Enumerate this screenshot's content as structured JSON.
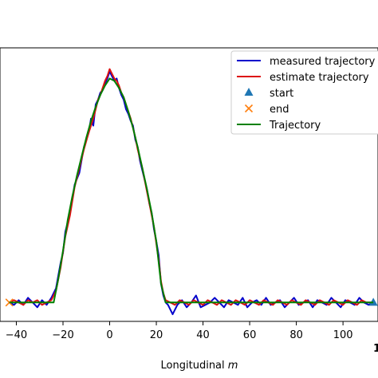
{
  "chart_data": {
    "type": "line",
    "xlabel_prefix": "Longitudinal ",
    "xlabel_unit": "m",
    "xlim": [
      -47,
      115
    ],
    "ylim": [
      -8,
      108
    ],
    "x_ticks": [
      -40,
      -20,
      0,
      20,
      40,
      60,
      80,
      100
    ],
    "x_tick_labels": [
      "−40",
      "−20",
      "0",
      "20",
      "40",
      "60",
      "80",
      "100"
    ],
    "x_tick_label_cut": "1",
    "legend_position": "upper right",
    "series": [
      {
        "name": "measured trajectory",
        "color": "#0000cc",
        "points": [
          [
            -43,
            0
          ],
          [
            -41,
            -1
          ],
          [
            -39,
            1
          ],
          [
            -37,
            -1
          ],
          [
            -35,
            2
          ],
          [
            -33,
            0
          ],
          [
            -31,
            -2
          ],
          [
            -29,
            1
          ],
          [
            -27,
            -1
          ],
          [
            -25,
            2
          ],
          [
            -23,
            6
          ],
          [
            -21,
            17
          ],
          [
            -20,
            21
          ],
          [
            -19,
            30
          ],
          [
            -17,
            38
          ],
          [
            -15,
            50
          ],
          [
            -13,
            55
          ],
          [
            -11,
            66
          ],
          [
            -9,
            72
          ],
          [
            -8,
            78
          ],
          [
            -7,
            75
          ],
          [
            -6,
            84
          ],
          [
            -5,
            86
          ],
          [
            -4,
            89
          ],
          [
            -3,
            90
          ],
          [
            -2,
            93
          ],
          [
            -1,
            95
          ],
          [
            0,
            98
          ],
          [
            1,
            96
          ],
          [
            2,
            94
          ],
          [
            3,
            95
          ],
          [
            4,
            91
          ],
          [
            5,
            88
          ],
          [
            6,
            86
          ],
          [
            7,
            82
          ],
          [
            8,
            80
          ],
          [
            9,
            77
          ],
          [
            10,
            75
          ],
          [
            11,
            69
          ],
          [
            12,
            66
          ],
          [
            13,
            60
          ],
          [
            14,
            56
          ],
          [
            15,
            52
          ],
          [
            16,
            48
          ],
          [
            17,
            42
          ],
          [
            18,
            38
          ],
          [
            19,
            31
          ],
          [
            20,
            26
          ],
          [
            21,
            20
          ],
          [
            22,
            8
          ],
          [
            23,
            3
          ],
          [
            24,
            0
          ],
          [
            25,
            -1
          ],
          [
            27,
            -5
          ],
          [
            29,
            -1
          ],
          [
            31,
            1
          ],
          [
            33,
            -2
          ],
          [
            35,
            0
          ],
          [
            37,
            3
          ],
          [
            39,
            -2
          ],
          [
            41,
            -1
          ],
          [
            43,
            0
          ],
          [
            45,
            2
          ],
          [
            47,
            0
          ],
          [
            49,
            -2
          ],
          [
            51,
            1
          ],
          [
            53,
            0
          ],
          [
            55,
            -1
          ],
          [
            57,
            2
          ],
          [
            59,
            -2
          ],
          [
            61,
            0
          ],
          [
            63,
            1
          ],
          [
            65,
            -1
          ],
          [
            67,
            2
          ],
          [
            69,
            -1
          ],
          [
            71,
            0
          ],
          [
            73,
            1
          ],
          [
            75,
            -2
          ],
          [
            77,
            0
          ],
          [
            79,
            2
          ],
          [
            81,
            -1
          ],
          [
            83,
            0
          ],
          [
            85,
            1
          ],
          [
            87,
            -2
          ],
          [
            89,
            1
          ],
          [
            91,
            0
          ],
          [
            93,
            -1
          ],
          [
            95,
            2
          ],
          [
            97,
            0
          ],
          [
            99,
            -2
          ],
          [
            101,
            1
          ],
          [
            103,
            0
          ],
          [
            105,
            -1
          ],
          [
            107,
            2
          ],
          [
            109,
            0
          ],
          [
            111,
            -1
          ],
          [
            113,
            0
          ]
        ]
      },
      {
        "name": "estimate trajectory",
        "color": "#dd1111",
        "points": [
          [
            -43,
            0
          ],
          [
            -41,
            1
          ],
          [
            -39,
            0
          ],
          [
            -37,
            -1
          ],
          [
            -35,
            1
          ],
          [
            -33,
            0
          ],
          [
            -31,
            1
          ],
          [
            -29,
            -1
          ],
          [
            -27,
            0
          ],
          [
            -25,
            1
          ],
          [
            -23,
            5
          ],
          [
            -21,
            15
          ],
          [
            -19,
            28
          ],
          [
            -17,
            37
          ],
          [
            -15,
            49
          ],
          [
            -13,
            57
          ],
          [
            -11,
            65
          ],
          [
            -9,
            72
          ],
          [
            -7,
            78
          ],
          [
            -6,
            82
          ],
          [
            -5,
            86
          ],
          [
            -4,
            88
          ],
          [
            -3,
            91
          ],
          [
            -2,
            94
          ],
          [
            -1,
            96
          ],
          [
            0,
            99
          ],
          [
            1,
            97
          ],
          [
            2,
            95
          ],
          [
            3,
            94
          ],
          [
            4,
            92
          ],
          [
            5,
            89
          ],
          [
            6,
            87
          ],
          [
            7,
            84
          ],
          [
            8,
            81
          ],
          [
            9,
            78
          ],
          [
            10,
            74
          ],
          [
            11,
            70
          ],
          [
            12,
            65
          ],
          [
            13,
            61
          ],
          [
            14,
            57
          ],
          [
            15,
            52
          ],
          [
            16,
            47
          ],
          [
            17,
            42
          ],
          [
            18,
            37
          ],
          [
            19,
            32
          ],
          [
            20,
            25
          ],
          [
            21,
            18
          ],
          [
            22,
            9
          ],
          [
            23,
            4
          ],
          [
            24,
            1
          ],
          [
            26,
            0
          ],
          [
            28,
            -1
          ],
          [
            30,
            1
          ],
          [
            32,
            0
          ],
          [
            34,
            -1
          ],
          [
            36,
            1
          ],
          [
            38,
            0
          ],
          [
            40,
            -1
          ],
          [
            42,
            1
          ],
          [
            44,
            0
          ],
          [
            46,
            -1
          ],
          [
            48,
            1
          ],
          [
            50,
            0
          ],
          [
            52,
            -1
          ],
          [
            54,
            1
          ],
          [
            56,
            0
          ],
          [
            58,
            -1
          ],
          [
            60,
            1
          ],
          [
            62,
            0
          ],
          [
            64,
            -1
          ],
          [
            66,
            1
          ],
          [
            68,
            0
          ],
          [
            70,
            -1
          ],
          [
            72,
            1
          ],
          [
            74,
            0
          ],
          [
            76,
            -1
          ],
          [
            78,
            1
          ],
          [
            80,
            0
          ],
          [
            82,
            -1
          ],
          [
            84,
            1
          ],
          [
            86,
            0
          ],
          [
            88,
            -1
          ],
          [
            90,
            1
          ],
          [
            92,
            0
          ],
          [
            94,
            -1
          ],
          [
            96,
            1
          ],
          [
            98,
            0
          ],
          [
            100,
            -1
          ],
          [
            102,
            1
          ],
          [
            104,
            0
          ],
          [
            106,
            -1
          ],
          [
            108,
            1
          ],
          [
            110,
            0
          ],
          [
            113,
            0
          ]
        ]
      },
      {
        "name": "start",
        "color": "#1f77b4",
        "marker": "triangle",
        "points": [
          [
            113,
            0
          ]
        ]
      },
      {
        "name": "end",
        "color": "#ff7f0e",
        "marker": "x",
        "points": [
          [
            -43,
            0
          ]
        ]
      },
      {
        "name": "Trajectory",
        "color": "#008000",
        "points": [
          [
            -43,
            0
          ],
          [
            -24,
            0
          ],
          [
            -22,
            10
          ],
          [
            -20,
            22
          ],
          [
            -18,
            35
          ],
          [
            -16,
            45
          ],
          [
            -14,
            54
          ],
          [
            -12,
            62
          ],
          [
            -10,
            70
          ],
          [
            -8,
            77
          ],
          [
            -6,
            83
          ],
          [
            -4,
            88
          ],
          [
            -2,
            92
          ],
          [
            0,
            95
          ],
          [
            2,
            94
          ],
          [
            4,
            91
          ],
          [
            6,
            87
          ],
          [
            8,
            81
          ],
          [
            10,
            74
          ],
          [
            12,
            66
          ],
          [
            14,
            57
          ],
          [
            16,
            48
          ],
          [
            18,
            38
          ],
          [
            20,
            26
          ],
          [
            22,
            8
          ],
          [
            24,
            0
          ],
          [
            113,
            0
          ]
        ]
      }
    ]
  }
}
